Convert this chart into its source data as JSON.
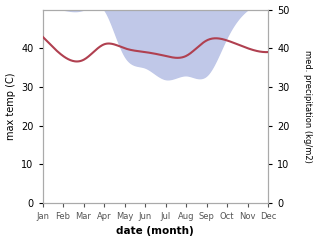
{
  "months": [
    "Jan",
    "Feb",
    "Mar",
    "Apr",
    "May",
    "Jun",
    "Jul",
    "Aug",
    "Sep",
    "Oct",
    "Nov",
    "Dec"
  ],
  "month_x": [
    0,
    1,
    2,
    3,
    4,
    5,
    6,
    7,
    8,
    9,
    10,
    11
  ],
  "temp": [
    43,
    38,
    37,
    41,
    40,
    39,
    38,
    38,
    42,
    42,
    40,
    39
  ],
  "precip": [
    50,
    50,
    50,
    50,
    38,
    35,
    32,
    33,
    33,
    43,
    50,
    52
  ],
  "temp_color": "#b04050",
  "precip_fill_color": "#c0c8e8",
  "ylabel_left": "max temp (C)",
  "ylabel_right": "med. precipitation (kg/m2)",
  "xlabel": "date (month)",
  "ylim_left": [
    0,
    50
  ],
  "ylim_right": [
    0,
    50
  ],
  "yticks_left": [
    0,
    10,
    20,
    30,
    40
  ],
  "yticks_right": [
    0,
    10,
    20,
    30,
    40,
    50
  ],
  "bg_color": "#ffffff"
}
